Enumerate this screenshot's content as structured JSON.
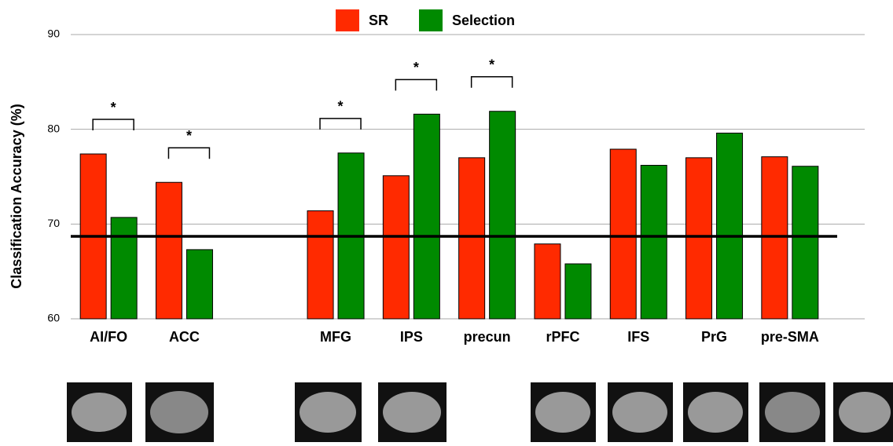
{
  "chart_data": {
    "type": "bar",
    "y_label": "Classification Accuracy (%)",
    "categories": [
      "AI/FO",
      "ACC",
      null,
      "MFG",
      "IPS",
      "precun",
      "rPFC",
      "IFS",
      "PrG",
      "pre-SMA"
    ],
    "series": [
      {
        "name": "SR",
        "color": "#ff2a00",
        "values": [
          77.4,
          74.4,
          null,
          71.4,
          75.1,
          77.0,
          67.9,
          77.9,
          77.0,
          77.1
        ]
      },
      {
        "name": "Selection",
        "color": "#008a00",
        "values": [
          70.7,
          67.3,
          null,
          77.5,
          81.6,
          81.9,
          65.8,
          76.2,
          79.6,
          76.1
        ]
      }
    ],
    "significance": [
      "*",
      "*",
      null,
      "*",
      "*",
      "*",
      null,
      null,
      null,
      null
    ],
    "reference_line": 68.7,
    "ylim": [
      60,
      90
    ],
    "yticks": [
      60,
      70,
      80,
      90
    ],
    "grid": true
  }
}
